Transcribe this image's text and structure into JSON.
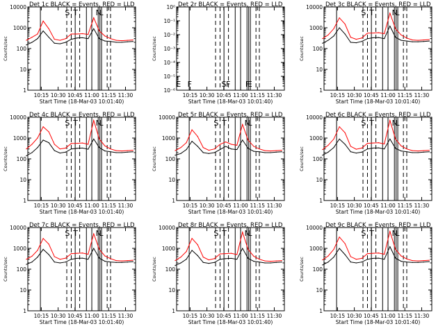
{
  "figure": {
    "xlabel": "Start Time (18-Mar-03 10:01:40)",
    "ylabel": "Counts/sec"
  },
  "colors": {
    "events": "#000000",
    "lld": "#ff0000",
    "axes": "#000000"
  },
  "chart_data": [
    {
      "type": "line",
      "title": "Det 1c BLACK = Events, RED = LLD",
      "xlabel": "Start Time (18-Mar-03 10:01:40)",
      "ylabel": "Counts/sec",
      "xticks": [
        "10:15",
        "10:30",
        "10:45",
        "11:00",
        "11:15",
        "11:30"
      ],
      "yscale": "log",
      "ylim": [
        1,
        10000
      ],
      "yticks": [
        "1",
        "10",
        "100",
        "1000",
        "10000"
      ],
      "markers": [
        "S",
        "T",
        "N",
        "L"
      ],
      "x_minutes": [
        0,
        5,
        10,
        15,
        20,
        25,
        30,
        35,
        40,
        45,
        50,
        55,
        60,
        65,
        70,
        75,
        80,
        85,
        90,
        95
      ],
      "series": [
        {
          "name": "Events",
          "values": [
            150,
            200,
            300,
            700,
            350,
            180,
            170,
            200,
            280,
            320,
            330,
            300,
            900,
            300,
            230,
            220,
            200,
            200,
            210,
            220
          ]
        },
        {
          "name": "LLD",
          "values": [
            250,
            350,
            500,
            2100,
            900,
            280,
            250,
            300,
            500,
            500,
            520,
            480,
            3000,
            700,
            400,
            300,
            250,
            240,
            250,
            260
          ]
        }
      ]
    },
    {
      "type": "line",
      "title": "Det 2r BLACK = Events, RED = LLD",
      "xlabel": "Start Time (18-Mar-03 10:01:40)",
      "ylabel": "Counts/sec",
      "xticks": [
        "10:15",
        "10:30",
        "10:45",
        "11:00",
        "11:15",
        "11:30"
      ],
      "yscale": "log",
      "ylim": [
        1e-06,
        1
      ],
      "yticks": [
        "10⁻⁶",
        "10⁻⁵",
        "10⁻⁴",
        "10⁻³",
        "10⁻²",
        "10⁻¹",
        "10⁰"
      ],
      "markers": [
        "E",
        "F",
        "S",
        "F",
        "F",
        "E"
      ],
      "x_minutes": [],
      "series": []
    },
    {
      "type": "line",
      "title": "Det 3c BLACK = Events, RED = LLD",
      "xlabel": "Start Time (18-Mar-03 10:01:40)",
      "ylabel": "Counts/sec",
      "xticks": [
        "10:15",
        "10:30",
        "10:45",
        "11:00",
        "11:15",
        "11:30"
      ],
      "yscale": "log",
      "ylim": [
        1,
        10000
      ],
      "yticks": [
        "1",
        "10",
        "100",
        "1000",
        "10000"
      ],
      "markers": [
        "S",
        "T",
        "N",
        "L"
      ],
      "x_minutes": [
        0,
        5,
        10,
        15,
        20,
        25,
        30,
        35,
        40,
        45,
        50,
        55,
        60,
        65,
        70,
        75,
        80,
        85,
        90,
        95
      ],
      "series": [
        {
          "name": "Events",
          "values": [
            180,
            250,
            400,
            1000,
            500,
            200,
            190,
            220,
            300,
            330,
            340,
            300,
            1200,
            350,
            250,
            230,
            210,
            210,
            220,
            230
          ]
        },
        {
          "name": "LLD",
          "values": [
            300,
            450,
            900,
            3000,
            1500,
            350,
            280,
            320,
            550,
            560,
            580,
            520,
            5000,
            900,
            450,
            320,
            260,
            250,
            260,
            270
          ]
        }
      ]
    },
    {
      "type": "line",
      "title": "Det 4c BLACK = Events, RED = LLD",
      "xlabel": "Start Time (18-Mar-03 10:01:40)",
      "ylabel": "Counts/sec",
      "xticks": [
        "10:15",
        "10:30",
        "10:45",
        "11:00",
        "11:15",
        "11:30"
      ],
      "yscale": "log",
      "ylim": [
        1,
        10000
      ],
      "yticks": [
        "1",
        "10",
        "100",
        "1000",
        "10000"
      ],
      "markers": [
        "S",
        "T",
        "N",
        "L"
      ],
      "x_minutes": [
        0,
        5,
        10,
        15,
        20,
        25,
        30,
        35,
        40,
        45,
        50,
        55,
        60,
        65,
        70,
        75,
        80,
        85,
        90,
        95
      ],
      "series": [
        {
          "name": "Events",
          "values": [
            140,
            200,
            350,
            800,
            600,
            250,
            190,
            210,
            300,
            320,
            330,
            290,
            900,
            350,
            240,
            220,
            200,
            200,
            210,
            220
          ]
        },
        {
          "name": "LLD",
          "values": [
            300,
            500,
            1000,
            3500,
            2000,
            500,
            300,
            330,
            550,
            560,
            580,
            500,
            7000,
            900,
            420,
            300,
            250,
            240,
            250,
            260
          ]
        }
      ]
    },
    {
      "type": "line",
      "title": "Det 5r BLACK = Events, RED = LLD",
      "xlabel": "Start Time (18-Mar-03 10:01:40)",
      "ylabel": "Counts/sec",
      "xticks": [
        "10:15",
        "10:30",
        "10:45",
        "11:00",
        "11:15",
        "11:30"
      ],
      "yscale": "log",
      "ylim": [
        1,
        10000
      ],
      "yticks": [
        "1",
        "10",
        "100",
        "1000",
        "10000"
      ],
      "markers": [
        "S",
        "T",
        "N",
        "L"
      ],
      "x_minutes": [
        0,
        5,
        10,
        15,
        20,
        25,
        30,
        35,
        40,
        45,
        50,
        55,
        60,
        65,
        70,
        75,
        80,
        85,
        90,
        95
      ],
      "series": [
        {
          "name": "Events",
          "values": [
            150,
            180,
            280,
            700,
            400,
            200,
            180,
            200,
            280,
            400,
            300,
            280,
            800,
            320,
            230,
            220,
            200,
            200,
            210,
            220
          ]
        },
        {
          "name": "LLD",
          "values": [
            250,
            350,
            600,
            2500,
            1200,
            350,
            260,
            300,
            500,
            650,
            500,
            450,
            4500,
            800,
            400,
            300,
            250,
            240,
            250,
            260
          ]
        }
      ]
    },
    {
      "type": "line",
      "title": "Det 6c BLACK = Events, RED = LLD",
      "xlabel": "Start Time (18-Mar-03 10:01:40)",
      "ylabel": "Counts/sec",
      "xticks": [
        "10:15",
        "10:30",
        "10:45",
        "11:00",
        "11:15",
        "11:30"
      ],
      "yscale": "log",
      "ylim": [
        1,
        10000
      ],
      "yticks": [
        "1",
        "10",
        "100",
        "1000",
        "10000"
      ],
      "markers": [
        "S",
        "T",
        "N",
        "L"
      ],
      "x_minutes": [
        0,
        5,
        10,
        15,
        20,
        25,
        30,
        35,
        40,
        45,
        50,
        55,
        60,
        65,
        70,
        75,
        80,
        85,
        90,
        95
      ],
      "series": [
        {
          "name": "Events",
          "values": [
            150,
            210,
            350,
            900,
            500,
            220,
            190,
            210,
            300,
            330,
            340,
            300,
            900,
            320,
            240,
            220,
            200,
            200,
            210,
            220
          ]
        },
        {
          "name": "LLD",
          "values": [
            280,
            450,
            900,
            3500,
            1800,
            400,
            290,
            330,
            560,
            580,
            600,
            520,
            7000,
            900,
            420,
            300,
            250,
            240,
            250,
            260
          ]
        }
      ]
    },
    {
      "type": "line",
      "title": "Det 7c BLACK = Events, RED = LLD",
      "xlabel": "Start Time (18-Mar-03 10:01:40)",
      "ylabel": "Counts/sec",
      "xticks": [
        "10:15",
        "10:30",
        "10:45",
        "11:00",
        "11:15",
        "11:30"
      ],
      "yscale": "log",
      "ylim": [
        1,
        10000
      ],
      "yticks": [
        "1",
        "10",
        "100",
        "1000",
        "10000"
      ],
      "markers": [
        "S",
        "T",
        "N",
        "L"
      ],
      "x_minutes": [
        0,
        5,
        10,
        15,
        20,
        25,
        30,
        35,
        40,
        45,
        50,
        55,
        60,
        65,
        70,
        75,
        80,
        85,
        90,
        95
      ],
      "series": [
        {
          "name": "Events",
          "values": [
            170,
            220,
            380,
            900,
            500,
            220,
            200,
            220,
            300,
            330,
            340,
            300,
            1000,
            340,
            240,
            220,
            210,
            210,
            220,
            230
          ]
        },
        {
          "name": "LLD",
          "values": [
            300,
            420,
            800,
            3000,
            1600,
            400,
            300,
            340,
            560,
            580,
            600,
            520,
            5000,
            900,
            430,
            320,
            260,
            250,
            260,
            270
          ]
        }
      ]
    },
    {
      "type": "line",
      "title": "Det 8r BLACK = Events, RED = LLD",
      "xlabel": "Start Time (18-Mar-03 10:01:40)",
      "ylabel": "Counts/sec",
      "xticks": [
        "10:15",
        "10:30",
        "10:45",
        "11:00",
        "11:15",
        "11:30"
      ],
      "yscale": "log",
      "ylim": [
        1,
        10000
      ],
      "yticks": [
        "1",
        "10",
        "100",
        "1000",
        "10000"
      ],
      "markers": [
        "S",
        "T",
        "N",
        "L"
      ],
      "x_minutes": [
        0,
        5,
        10,
        15,
        20,
        25,
        30,
        35,
        40,
        45,
        50,
        55,
        60,
        65,
        70,
        75,
        80,
        85,
        90,
        95
      ],
      "series": [
        {
          "name": "Events",
          "values": [
            150,
            200,
            300,
            800,
            450,
            210,
            190,
            210,
            300,
            320,
            330,
            300,
            1000,
            330,
            240,
            220,
            200,
            200,
            210,
            220
          ]
        },
        {
          "name": "LLD",
          "values": [
            260,
            380,
            700,
            3000,
            1500,
            380,
            280,
            320,
            540,
            560,
            580,
            500,
            6000,
            900,
            420,
            300,
            250,
            240,
            250,
            260
          ]
        }
      ]
    },
    {
      "type": "line",
      "title": "Det 9c BLACK = Events, RED = LLD",
      "xlabel": "Start Time (18-Mar-03 10:01:40)",
      "ylabel": "Counts/sec",
      "xticks": [
        "10:15",
        "10:30",
        "10:45",
        "11:00",
        "11:15",
        "11:30"
      ],
      "yscale": "log",
      "ylim": [
        1,
        10000
      ],
      "yticks": [
        "1",
        "10",
        "100",
        "1000",
        "10000"
      ],
      "markers": [
        "S",
        "T",
        "N",
        "L"
      ],
      "x_minutes": [
        0,
        5,
        10,
        15,
        20,
        25,
        30,
        35,
        40,
        45,
        50,
        55,
        60,
        65,
        70,
        75,
        80,
        85,
        90,
        95
      ],
      "series": [
        {
          "name": "Events",
          "values": [
            160,
            220,
            380,
            1000,
            500,
            220,
            200,
            220,
            300,
            330,
            340,
            300,
            1200,
            340,
            240,
            220,
            210,
            210,
            220,
            230
          ]
        },
        {
          "name": "LLD",
          "values": [
            280,
            430,
            900,
            3500,
            1700,
            400,
            300,
            330,
            560,
            580,
            600,
            520,
            6500,
            900,
            430,
            310,
            260,
            250,
            260,
            270
          ]
        }
      ]
    }
  ]
}
